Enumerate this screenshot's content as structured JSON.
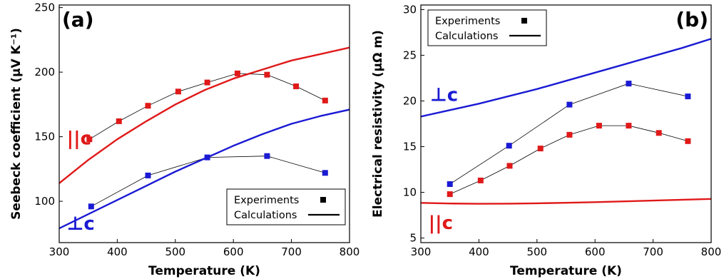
{
  "colors": {
    "parallel": "#e01919",
    "perpendicular": "#1a1ad4",
    "connector": "#000000"
  },
  "chart_data": [
    {
      "type": "line",
      "panel_label": "(a)",
      "xlabel": "Temperature (K)",
      "ylabel": "Seebeck coefficient (μV K⁻¹)",
      "xlim": [
        300,
        800
      ],
      "ylim": [
        68,
        252
      ],
      "xticks": [
        300,
        400,
        500,
        600,
        700,
        800
      ],
      "yticks": [
        100,
        150,
        200,
        250
      ],
      "legend": {
        "position": "bottom-right",
        "experiments": "Experiments",
        "calculations": "Calculations"
      },
      "annotations": [
        {
          "text": "||c",
          "color": "#e01919",
          "x": 313,
          "y": 144
        },
        {
          "text": "⊥c",
          "color": "#1a1ad4",
          "x": 313,
          "y": 78
        }
      ],
      "series": [
        {
          "key": "par_exp",
          "kind": "experiments",
          "color": "#e01919",
          "x": [
            352,
            403,
            453,
            505,
            555,
            607,
            658,
            708,
            758
          ],
          "y": [
            148,
            162,
            174,
            185,
            192,
            199,
            198,
            189,
            178
          ]
        },
        {
          "key": "perp_exp",
          "kind": "experiments",
          "color": "#1a1ad4",
          "x": [
            355,
            453,
            555,
            658,
            758
          ],
          "y": [
            96,
            120,
            134,
            135,
            122
          ]
        },
        {
          "key": "par_calc",
          "kind": "calculations",
          "color": "#e01919",
          "x": [
            300,
            350,
            400,
            450,
            500,
            550,
            600,
            650,
            700,
            750,
            800
          ],
          "y": [
            114,
            132,
            148,
            162,
            175,
            186,
            195,
            202,
            209,
            214,
            219
          ]
        },
        {
          "key": "perp_calc",
          "kind": "calculations",
          "color": "#1a1ad4",
          "x": [
            300,
            350,
            400,
            450,
            500,
            550,
            600,
            650,
            700,
            750,
            800
          ],
          "y": [
            79,
            90,
            101,
            112,
            123,
            133,
            143,
            152,
            160,
            166,
            171
          ]
        }
      ]
    },
    {
      "type": "line",
      "panel_label": "(b)",
      "xlabel": "Temperature (K)",
      "ylabel": "Electrical resistivity (μΩ m)",
      "xlim": [
        300,
        800
      ],
      "ylim": [
        4.5,
        30.5
      ],
      "xticks": [
        300,
        400,
        500,
        600,
        700,
        800
      ],
      "yticks": [
        5,
        10,
        15,
        20,
        25,
        30
      ],
      "legend": {
        "position": "top-left",
        "experiments": "Experiments",
        "calculations": "Calculations"
      },
      "annotations": [
        {
          "text": "⊥c",
          "color": "#1a1ad4",
          "x": 316,
          "y": 20
        },
        {
          "text": "||c",
          "color": "#e01919",
          "x": 313,
          "y": 6.0
        }
      ],
      "series": [
        {
          "key": "perp_exp",
          "kind": "experiments",
          "color": "#1a1ad4",
          "x": [
            350,
            452,
            556,
            658,
            760
          ],
          "y": [
            10.9,
            15.1,
            19.6,
            21.9,
            20.5
          ]
        },
        {
          "key": "par_exp",
          "kind": "experiments",
          "color": "#e01919",
          "x": [
            350,
            403,
            453,
            506,
            556,
            607,
            658,
            710,
            760
          ],
          "y": [
            9.8,
            11.3,
            12.9,
            14.8,
            16.3,
            17.3,
            17.3,
            16.5,
            15.6
          ]
        },
        {
          "key": "perp_calc",
          "kind": "calculations",
          "color": "#1a1ad4",
          "x": [
            300,
            350,
            400,
            450,
            500,
            550,
            600,
            650,
            700,
            750,
            800
          ],
          "y": [
            18.3,
            19.0,
            19.7,
            20.5,
            21.3,
            22.2,
            23.1,
            24.0,
            24.9,
            25.8,
            26.8
          ]
        },
        {
          "key": "par_calc",
          "kind": "calculations",
          "color": "#e01919",
          "x": [
            300,
            350,
            400,
            450,
            500,
            550,
            600,
            650,
            700,
            750,
            800
          ],
          "y": [
            8.85,
            8.78,
            8.75,
            8.76,
            8.8,
            8.86,
            8.93,
            9.01,
            9.1,
            9.19,
            9.28
          ]
        }
      ]
    }
  ]
}
